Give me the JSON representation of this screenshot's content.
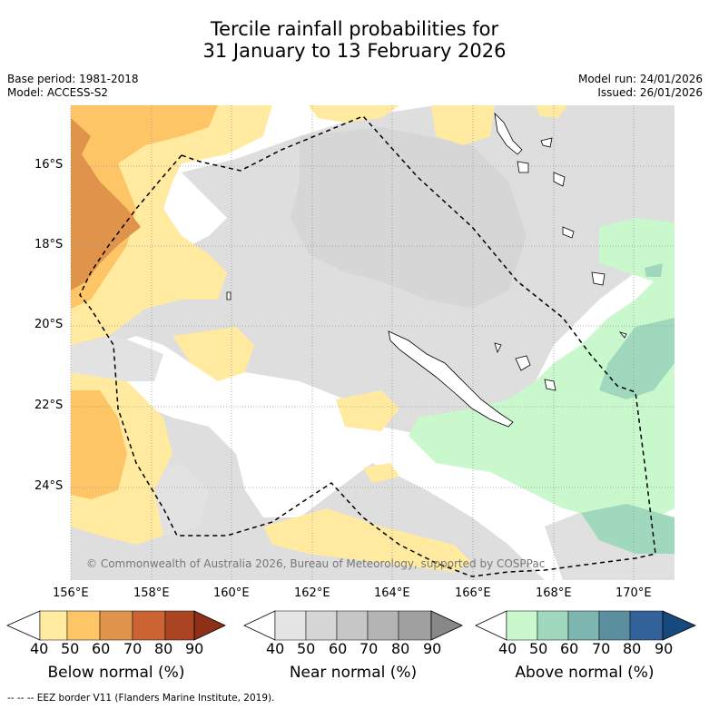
{
  "title_line1": "Tercile rainfall probabilities for",
  "title_line2": "31 January to 13 February 2026",
  "base_period": "Base period: 1981-2018",
  "model": "Model: ACCESS-S2",
  "model_run": "Model run: 24/01/2026",
  "issued": "Issued: 26/01/2026",
  "lat_labels": [
    "16°S",
    "18°S",
    "20°S",
    "22°S",
    "24°S"
  ],
  "lon_labels": [
    "156°E",
    "158°E",
    "160°E",
    "162°E",
    "164°E",
    "166°E",
    "168°E",
    "170°E"
  ],
  "copyright": "© Commonwealth of Australia 2026, Bureau of Meteorology, supported by COSPPac",
  "legend": {
    "below": {
      "title": "Below normal (%)",
      "ticks": [
        "40",
        "50",
        "60",
        "70",
        "80",
        "90"
      ],
      "colors": [
        "#ffeaa0",
        "#fdc565",
        "#e0934a",
        "#cc6333",
        "#aa4423",
        "#8e2f18"
      ]
    },
    "near": {
      "title": "Near normal (%)",
      "ticks": [
        "40",
        "50",
        "60",
        "70",
        "80",
        "90"
      ],
      "colors": [
        "#e5e5e5",
        "#d6d6d6",
        "#c6c6c6",
        "#b4b4b4",
        "#a0a0a0",
        "#888888"
      ]
    },
    "above": {
      "title": "Above normal (%)",
      "ticks": [
        "40",
        "50",
        "60",
        "70",
        "80",
        "90"
      ],
      "colors": [
        "#c8f8cc",
        "#a0d8be",
        "#7db5b0",
        "#5b8fa0",
        "#33629a",
        "#174a7c"
      ]
    }
  },
  "footer": "--  --  -- EEZ border V11 (Flanders Marine Institute, 2019)."
}
